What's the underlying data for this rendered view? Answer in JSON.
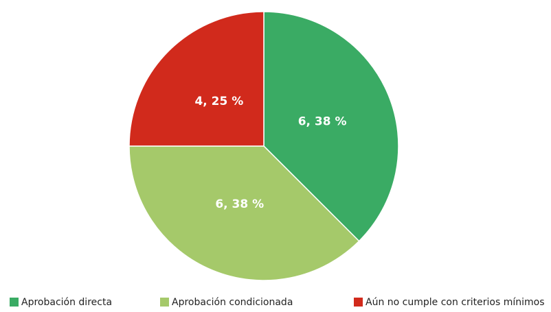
{
  "chart_data": {
    "type": "pie",
    "categories": [
      "Aprobación directa",
      "Aprobación condicionada",
      "Aún no cumple con criterios mínimos"
    ],
    "values": [
      6,
      6,
      4
    ],
    "value_labels": [
      "6, 38 %",
      "6, 38 %",
      "4, 25 %"
    ],
    "colors": [
      "#3aab64",
      "#a5c96a",
      "#d12a1c"
    ],
    "legend": "bottom"
  }
}
